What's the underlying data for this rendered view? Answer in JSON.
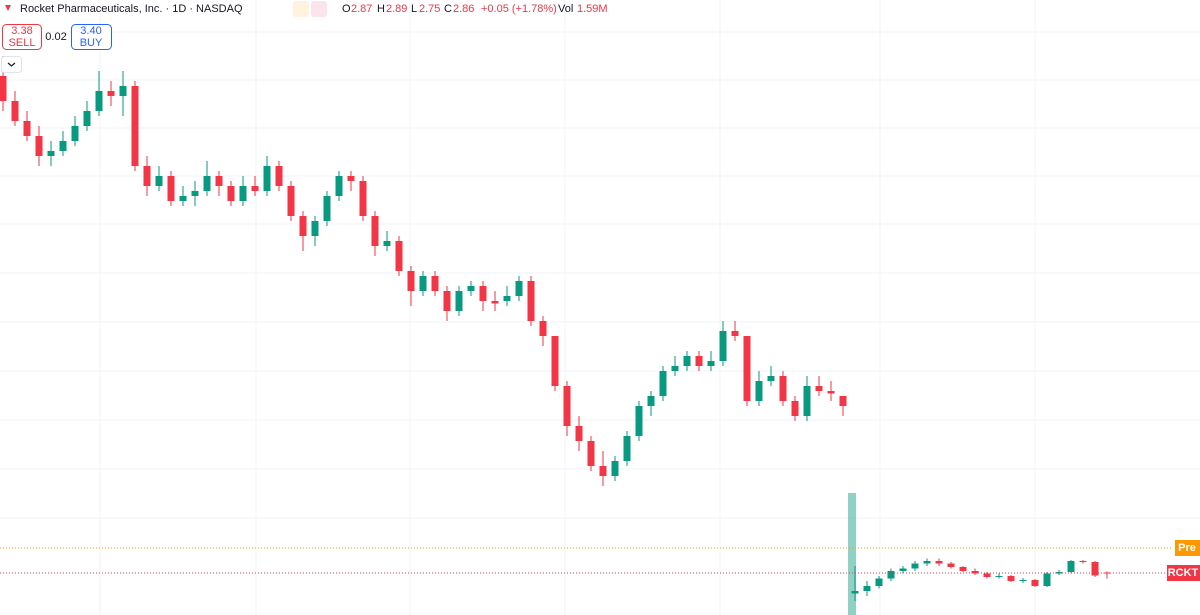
{
  "header": {
    "title": "Rocket Pharmaceuticals, Inc. · 1D · NASDAQ",
    "o_label": "O",
    "h_label": "H",
    "l_label": "L",
    "c_label": "C",
    "change": "+0.05 (+1.78%)",
    "vol_label": "Vol",
    "volume": "1.59M",
    "sell_price": "3.38",
    "sell_label": "SELL",
    "spread": "0.02",
    "buy_price": "3.40",
    "buy_label": "BUY"
  },
  "chart_data": {
    "type": "candlestick",
    "up_color": "#089981",
    "down_color": "#f23645",
    "ylim": [
      2.02,
      14.32
    ],
    "pre_label": "Pre",
    "pre_price": 3.36,
    "pre_color": "#ff9800",
    "last_label": "RCKT",
    "ohlc": [
      [
        12.8,
        13.2,
        12.1,
        12.3
      ],
      [
        12.3,
        12.5,
        11.8,
        11.9
      ],
      [
        11.9,
        12.1,
        11.5,
        11.6
      ],
      [
        11.6,
        11.8,
        11.0,
        11.2
      ],
      [
        11.2,
        11.5,
        11.0,
        11.3
      ],
      [
        11.3,
        11.7,
        11.2,
        11.5
      ],
      [
        11.5,
        12.0,
        11.4,
        11.8
      ],
      [
        11.8,
        12.3,
        11.7,
        12.1
      ],
      [
        12.1,
        12.9,
        12.0,
        12.5
      ],
      [
        12.5,
        12.7,
        12.2,
        12.4
      ],
      [
        12.4,
        12.9,
        12.0,
        12.6
      ],
      [
        12.6,
        12.7,
        10.9,
        11.0
      ],
      [
        11.0,
        11.2,
        10.4,
        10.6
      ],
      [
        10.6,
        11.0,
        10.5,
        10.8
      ],
      [
        10.8,
        10.9,
        10.2,
        10.3
      ],
      [
        10.3,
        10.6,
        10.2,
        10.4
      ],
      [
        10.4,
        10.7,
        10.2,
        10.5
      ],
      [
        10.5,
        11.1,
        10.4,
        10.8
      ],
      [
        10.8,
        10.9,
        10.4,
        10.6
      ],
      [
        10.6,
        10.7,
        10.2,
        10.3
      ],
      [
        10.3,
        10.8,
        10.2,
        10.6
      ],
      [
        10.6,
        10.8,
        10.4,
        10.5
      ],
      [
        10.5,
        11.2,
        10.4,
        11.0
      ],
      [
        11.0,
        11.1,
        10.5,
        10.6
      ],
      [
        10.6,
        10.7,
        9.9,
        10.0
      ],
      [
        10.0,
        10.1,
        9.3,
        9.6
      ],
      [
        9.6,
        10.0,
        9.4,
        9.9
      ],
      [
        9.9,
        10.5,
        9.8,
        10.4
      ],
      [
        10.4,
        10.9,
        10.3,
        10.8
      ],
      [
        10.8,
        10.9,
        10.5,
        10.7
      ],
      [
        10.7,
        10.8,
        9.9,
        10.0
      ],
      [
        10.0,
        10.1,
        9.2,
        9.4
      ],
      [
        9.4,
        9.7,
        9.3,
        9.5
      ],
      [
        9.5,
        9.6,
        8.8,
        8.9
      ],
      [
        8.9,
        9.0,
        8.2,
        8.5
      ],
      [
        8.5,
        8.9,
        8.4,
        8.8
      ],
      [
        8.8,
        8.9,
        8.4,
        8.5
      ],
      [
        8.5,
        8.6,
        7.9,
        8.1
      ],
      [
        8.1,
        8.6,
        8.0,
        8.5
      ],
      [
        8.5,
        8.7,
        8.4,
        8.6
      ],
      [
        8.6,
        8.7,
        8.1,
        8.3
      ],
      [
        8.3,
        8.5,
        8.1,
        8.25
      ],
      [
        8.3,
        8.6,
        8.2,
        8.4
      ],
      [
        8.4,
        8.8,
        8.3,
        8.7
      ],
      [
        8.7,
        8.8,
        7.8,
        7.9
      ],
      [
        7.9,
        8.0,
        7.4,
        7.6
      ],
      [
        7.6,
        7.6,
        6.5,
        6.6
      ],
      [
        6.6,
        6.7,
        5.6,
        5.8
      ],
      [
        5.8,
        6.0,
        5.3,
        5.5
      ],
      [
        5.5,
        5.6,
        4.9,
        5.0
      ],
      [
        5.0,
        5.3,
        4.6,
        4.8
      ],
      [
        4.8,
        5.2,
        4.7,
        5.1
      ],
      [
        5.1,
        5.7,
        5.0,
        5.6
      ],
      [
        5.6,
        6.3,
        5.5,
        6.2
      ],
      [
        6.2,
        6.5,
        6.0,
        6.4
      ],
      [
        6.4,
        7.0,
        6.3,
        6.9
      ],
      [
        6.9,
        7.2,
        6.8,
        7.0
      ],
      [
        7.0,
        7.3,
        6.9,
        7.2
      ],
      [
        7.2,
        7.3,
        6.9,
        7.0
      ],
      [
        7.0,
        7.3,
        6.9,
        7.1
      ],
      [
        7.1,
        7.9,
        7.0,
        7.7
      ],
      [
        7.7,
        7.9,
        7.5,
        7.6
      ],
      [
        7.6,
        7.6,
        6.2,
        6.3
      ],
      [
        6.3,
        6.9,
        6.2,
        6.7
      ],
      [
        6.7,
        7.0,
        6.6,
        6.8
      ],
      [
        6.8,
        6.9,
        6.2,
        6.3
      ],
      [
        6.3,
        6.4,
        5.9,
        6.0
      ],
      [
        6.0,
        6.8,
        5.9,
        6.6
      ],
      [
        6.6,
        6.8,
        6.4,
        6.5
      ],
      [
        6.5,
        6.7,
        6.3,
        6.45
      ],
      [
        6.4,
        6.4,
        6.0,
        6.2
      ],
      [
        2.45,
        3.0,
        2.3,
        2.5
      ],
      [
        2.5,
        2.7,
        2.4,
        2.6
      ],
      [
        2.6,
        2.8,
        2.55,
        2.75
      ],
      [
        2.75,
        2.95,
        2.7,
        2.9
      ],
      [
        2.9,
        3.0,
        2.85,
        2.95
      ],
      [
        2.95,
        3.1,
        2.9,
        3.05
      ],
      [
        3.05,
        3.15,
        3.0,
        3.1
      ],
      [
        3.1,
        3.15,
        3.0,
        3.05
      ],
      [
        3.05,
        3.08,
        2.95,
        2.98
      ],
      [
        2.98,
        3.0,
        2.88,
        2.9
      ],
      [
        2.9,
        2.95,
        2.82,
        2.85
      ],
      [
        2.85,
        2.88,
        2.75,
        2.78
      ],
      [
        2.78,
        2.85,
        2.75,
        2.8
      ],
      [
        2.8,
        2.82,
        2.68,
        2.7
      ],
      [
        2.7,
        2.76,
        2.66,
        2.72
      ],
      [
        2.72,
        2.74,
        2.58,
        2.6
      ],
      [
        2.6,
        2.88,
        2.58,
        2.85
      ],
      [
        2.85,
        2.92,
        2.82,
        2.88
      ],
      [
        2.88,
        3.12,
        2.86,
        3.1
      ],
      [
        3.1,
        3.12,
        3.05,
        3.08
      ],
      [
        3.08,
        3.1,
        2.78,
        2.81
      ],
      [
        2.87,
        2.89,
        2.75,
        2.86
      ]
    ]
  }
}
